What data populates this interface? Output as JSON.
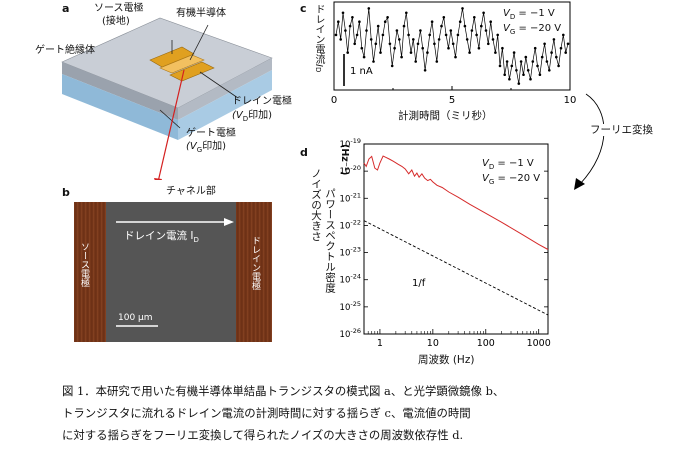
{
  "panel_a": {
    "label": "a",
    "source_electrode": "ソース電極",
    "source_note": "(接地)",
    "semiconductor": "有機半導体",
    "gate_insulator": "ゲート絶縁体",
    "drain_electrode": "ドレイン電極",
    "drain_note_pre": "(V",
    "drain_note_sub": "D",
    "drain_note_post": "印加)",
    "gate_electrode": "ゲート電極",
    "gate_note_pre": "(V",
    "gate_note_sub": "G",
    "gate_note_post": "印加)"
  },
  "panel_b": {
    "label": "b",
    "channel": "チャネル部",
    "current_label": "ドレイン電流 I",
    "current_sub": "D",
    "source_electrode": "ソース電極",
    "drain_electrode": "ドレイン電極",
    "scale_bar": "100 µm"
  },
  "panel_c": {
    "label": "c",
    "ylabel_jp": "ドレイン電流",
    "ylabel_sym": "I",
    "ylabel_sub": "D",
    "xlabel": "計測時間（ミリ秒）",
    "scale_text": "1 nA",
    "vd": "V",
    "vd_sub": "D",
    "vd_val": " = −1 V",
    "vg": "V",
    "vg_sub": "G",
    "vg_val": " = −20 V",
    "xticks": [
      "0",
      "5",
      "10"
    ]
  },
  "arrow_label": "フーリエ変換",
  "panel_d": {
    "label": "d",
    "ylabel_1": "ノイズの大きさ",
    "ylabel_2": "パワースペクトル密度",
    "ylabel_unit": "(Hz⁻¹)",
    "xlabel": "周波数 (Hz)",
    "annotation": "1/f",
    "vd": "V",
    "vd_sub": "D",
    "vd_val": " = −1 V",
    "vg": "V",
    "vg_sub": "G",
    "vg_val": " = −20 V",
    "yticks": [
      {
        "base": "10",
        "exp": "-19"
      },
      {
        "base": "10",
        "exp": "-20"
      },
      {
        "base": "10",
        "exp": "-21"
      },
      {
        "base": "10",
        "exp": "-22"
      },
      {
        "base": "10",
        "exp": "-23"
      },
      {
        "base": "10",
        "exp": "-24"
      },
      {
        "base": "10",
        "exp": "-25"
      },
      {
        "base": "10",
        "exp": "-26"
      }
    ],
    "xticks": [
      "1",
      "10",
      "100",
      "1000"
    ]
  },
  "caption": [
    "図 1．本研究で用いた有機半導体単結晶トランジスタの模式図 a、と光学顕微鏡像 b、",
    "トランジスタに流れるドレイン電流の計測時間に対する揺らぎ c、電流値の時間",
    "に対する揺らぎをフーリエ変換して得られたノイズの大きさの周波数依存性 d."
  ],
  "colors": {
    "spectrum": "#d62a2a",
    "arrow_red": "#d42020",
    "electrode_brown": "#7a3a1c",
    "channel_gray": "#555555",
    "electrode_gold": "#e0a020"
  },
  "chart_data": [
    {
      "type": "line",
      "panel": "c",
      "xlabel": "計測時間（ミリ秒）",
      "ylabel": "ドレイン電流 I_D",
      "xlim": [
        0,
        10
      ],
      "x_ticks": [
        0,
        5,
        10
      ],
      "scale_bar": "1 nA",
      "note": "VD = −1 V, VG = −20 V",
      "series": [
        {
          "values": [
            2.6,
            2.9,
            2.5,
            3.1,
            2.7,
            2.2,
            2.8,
            3.0,
            2.4,
            2.6,
            2.9,
            2.3,
            2.1,
            2.7,
            3.2,
            2.5,
            2.0,
            2.4,
            2.8,
            2.2,
            2.6,
            2.9,
            3.0,
            2.4,
            1.9,
            2.3,
            2.7,
            2.5,
            2.1,
            2.8,
            3.1,
            2.6,
            2.2,
            2.5,
            2.0,
            2.4,
            2.7,
            2.3,
            1.8,
            2.2,
            2.6,
            2.9,
            2.4,
            2.0,
            2.5,
            2.8,
            3.0,
            2.6,
            2.3,
            2.7,
            2.4,
            2.1,
            2.6,
            2.9,
            3.2,
            2.8,
            2.5,
            2.2,
            2.7,
            3.0,
            2.6,
            2.3,
            2.8,
            3.1,
            2.7,
            2.4,
            2.9,
            2.5,
            2.2,
            2.6,
            1.9,
            2.3,
            1.7,
            2.0,
            1.6,
            1.9,
            2.2,
            1.8,
            1.5,
            2.0,
            1.7,
            2.1,
            1.8,
            1.6,
            2.0,
            2.3,
            1.9,
            1.7,
            2.1,
            2.4,
            2.0,
            1.8,
            2.2,
            2.5,
            2.1,
            1.9,
            2.3,
            2.6,
            2.2,
            2.4
          ]
        }
      ]
    },
    {
      "type": "line",
      "panel": "d",
      "xlabel": "周波数 (Hz)",
      "ylabel": "ノイズの大きさ パワースペクトル密度 (Hz⁻¹)",
      "xscale": "log",
      "yscale": "log",
      "xlim": [
        0.5,
        1500
      ],
      "ylim": [
        1e-26,
        1e-19
      ],
      "series": [
        {
          "style": "solid-red",
          "x": [
            0.5,
            0.55,
            0.62,
            0.7,
            0.8,
            0.9,
            1.0,
            1.15,
            1.3,
            1.5,
            1.8,
            2.2,
            2.6,
            3.0,
            3.5,
            4.0,
            4.5,
            5.0,
            5.5,
            6.2,
            7.0,
            8.0,
            9.0,
            10.0,
            12.0,
            15.0,
            20.0,
            30.0,
            50.0,
            100.0,
            200.0,
            500.0,
            1000.0,
            1500.0
          ],
          "y": [
            2e-20,
            1.5e-20,
            2.8e-20,
            3.5e-20,
            1.3e-20,
            1.1e-20,
            2e-20,
            3.6e-20,
            3.2e-20,
            2.8e-20,
            2.3e-20,
            1.8e-20,
            1.5e-20,
            1.2e-20,
            8e-21,
            1.1e-20,
            6.5e-21,
            8.5e-21,
            6e-21,
            8e-21,
            5.5e-21,
            4.5e-21,
            5e-21,
            4e-21,
            3e-21,
            2.5e-21,
            1.7e-21,
            1.1e-21,
            6e-22,
            2.8e-22,
            1.3e-22,
            4.5e-23,
            2e-23,
            1.3e-23
          ]
        },
        {
          "style": "dashed-black",
          "name": "1/f",
          "x": [
            0.5,
            1500.0
          ],
          "y": [
            1.5e-22,
            5e-26
          ]
        }
      ]
    }
  ]
}
